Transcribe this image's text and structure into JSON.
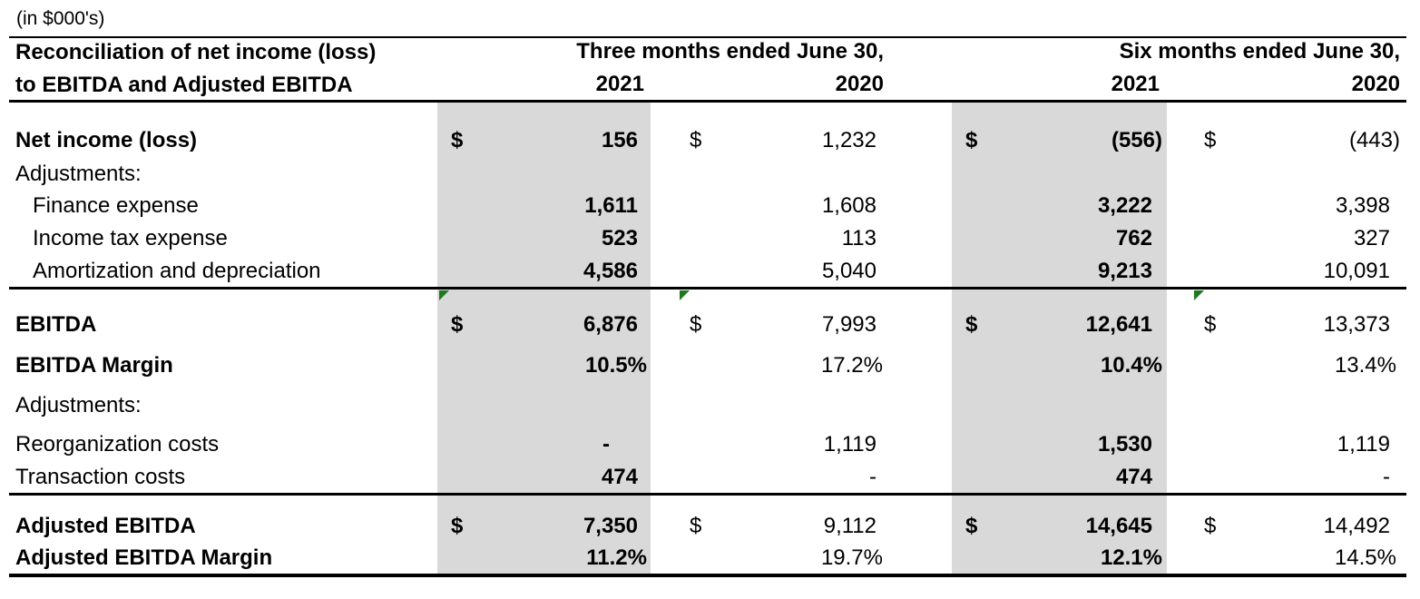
{
  "units_note": "(in $000's)",
  "header": {
    "title_line1": "Reconciliation of net income (loss)",
    "title_line2": "to EBITDA and Adjusted EBITDA",
    "period_three": "Three months ended June 30,",
    "period_six": "Six months ended June 30,",
    "years": [
      "2021",
      "2020",
      "2021",
      "2020"
    ]
  },
  "rows": {
    "net_income": {
      "label": "Net income (loss)",
      "values": [
        "156",
        "1,232",
        "(556)",
        "(443)"
      ]
    },
    "adjustments1": {
      "label": "Adjustments:"
    },
    "finance": {
      "label": "Finance expense",
      "values": [
        "1,611",
        "1,608",
        "3,222",
        "3,398"
      ]
    },
    "income_tax": {
      "label": "Income tax expense",
      "values": [
        "523",
        "113",
        "762",
        "327"
      ]
    },
    "amortization": {
      "label": "Amortization and depreciation",
      "values": [
        "4,586",
        "5,040",
        "9,213",
        "10,091"
      ]
    },
    "ebitda": {
      "label": "EBITDA",
      "values": [
        "6,876",
        "7,993",
        "12,641",
        "13,373"
      ]
    },
    "ebitda_margin": {
      "label": "EBITDA Margin",
      "values": [
        "10.5%",
        "17.2%",
        "10.4%",
        "13.4%"
      ]
    },
    "adjustments2": {
      "label": "Adjustments:"
    },
    "reorg": {
      "label": "Reorganization costs",
      "values": [
        "-",
        "1,119",
        "1,530",
        "1,119"
      ]
    },
    "transaction": {
      "label": "Transaction costs",
      "values": [
        "474",
        "-",
        "474",
        "-"
      ]
    },
    "adj_ebitda": {
      "label": "Adjusted EBITDA",
      "values": [
        "7,350",
        "9,112",
        "14,645",
        "14,492"
      ]
    },
    "adj_ebitda_margin": {
      "label": "Adjusted EBITDA Margin",
      "values": [
        "11.2%",
        "19.7%",
        "12.1%",
        "14.5%"
      ]
    }
  },
  "currency_symbol": "$",
  "colors": {
    "highlight_column": "#d9d9d9",
    "comment_marker": "#1e7a1e"
  }
}
